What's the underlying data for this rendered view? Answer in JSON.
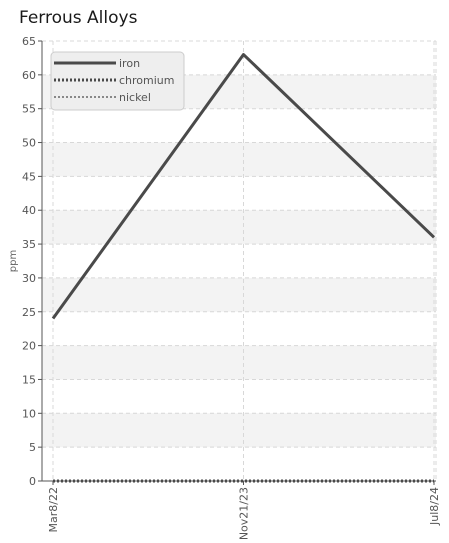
{
  "chart_data": {
    "type": "line",
    "title": "Ferrous Alloys",
    "xlabel": "",
    "ylabel": "ppm",
    "categories": [
      "Mar8/22",
      "Nov21/23",
      "Jul8/24"
    ],
    "ylim": [
      0,
      65
    ],
    "yticks": [
      0,
      5,
      10,
      15,
      20,
      25,
      30,
      35,
      40,
      45,
      50,
      55,
      60,
      65
    ],
    "grid": true,
    "legend_position": "top-left",
    "series": [
      {
        "name": "iron",
        "values": [
          24,
          63,
          36
        ],
        "color": "#4a4a4a",
        "style": "solid"
      },
      {
        "name": "chromium",
        "values": [
          0,
          0,
          0
        ],
        "color": "#4a4a4a",
        "style": "dotted"
      },
      {
        "name": "nickel",
        "values": [
          0,
          0,
          0
        ],
        "color": "#888888",
        "style": "dotted"
      }
    ]
  }
}
